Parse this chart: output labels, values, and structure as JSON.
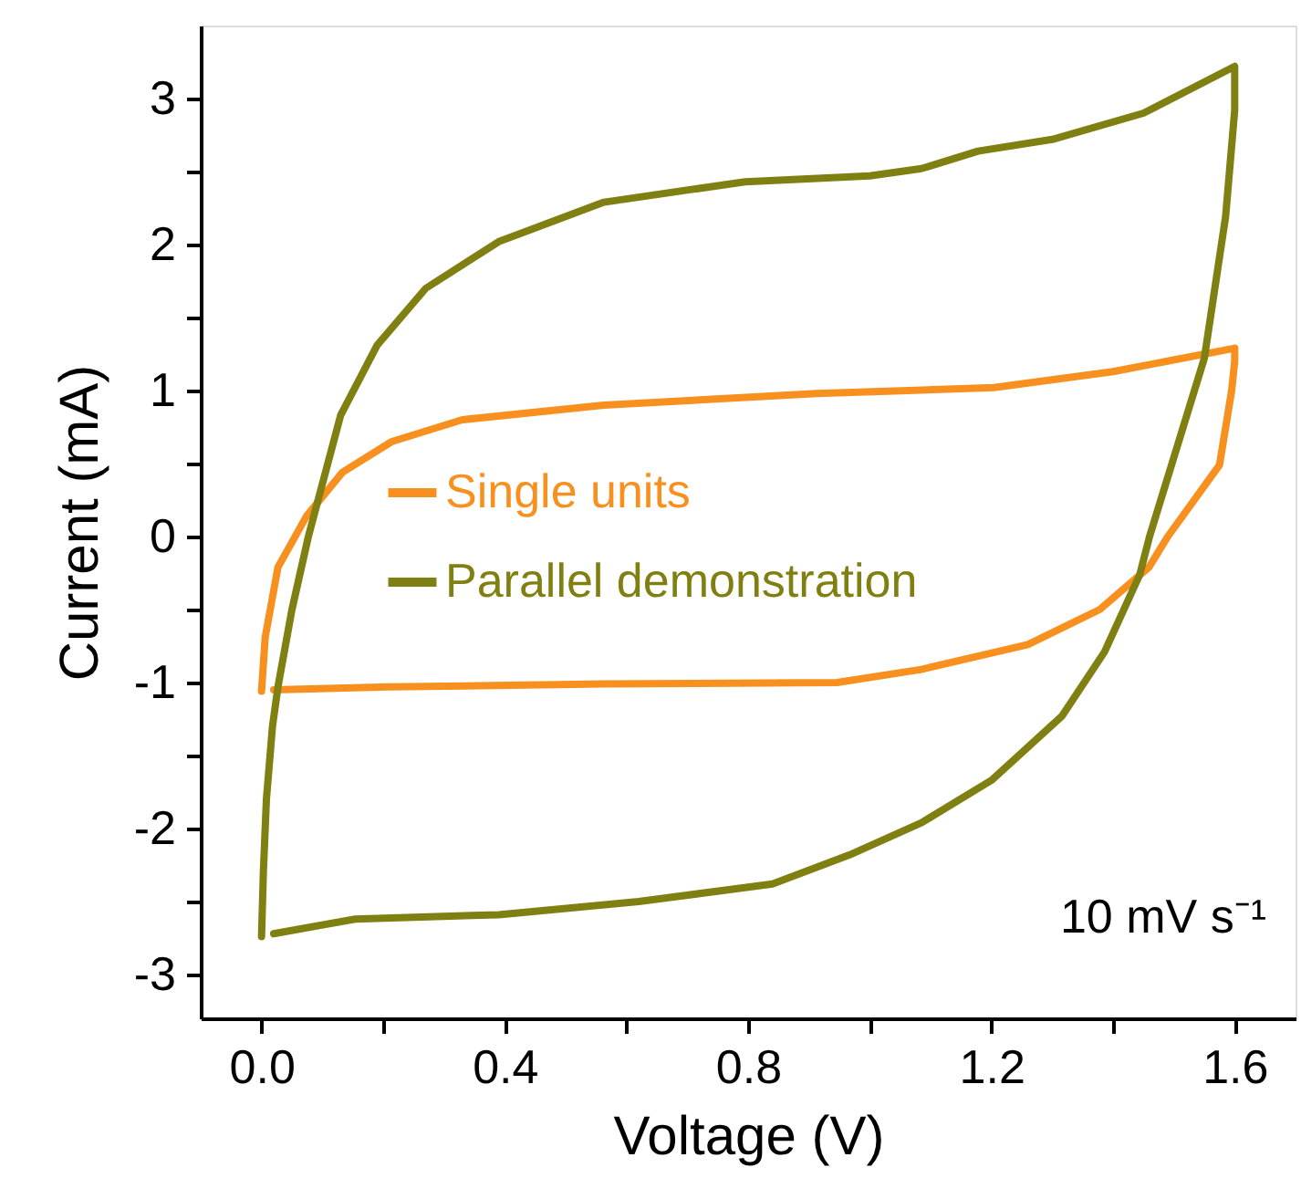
{
  "chart_data": {
    "type": "line",
    "xlabel": "Voltage (V)",
    "ylabel": "Current (mA)",
    "xlim": [
      -0.1,
      1.7
    ],
    "ylim": [
      -3.3,
      3.5
    ],
    "xticks": [
      {
        "value": 0,
        "label": "0.0"
      },
      0.4,
      0.8,
      1.2,
      1.6,
      {
        "value": 0.2,
        "label": null
      },
      {
        "value": 0.6,
        "label": null
      },
      {
        "value": 1.0,
        "label": null
      },
      {
        "value": 1.4,
        "label": null
      }
    ],
    "yticks": [
      -3,
      -2,
      -1,
      0,
      1,
      2,
      3,
      {
        "value": -2.5,
        "label": null
      },
      {
        "value": -1.5,
        "label": null
      },
      {
        "value": -0.5,
        "label": null
      },
      {
        "value": 0.5,
        "label": null
      },
      {
        "value": 1.5,
        "label": null
      },
      {
        "value": 2.5,
        "label": null
      }
    ],
    "grid": false,
    "legend": "left",
    "marker": "none",
    "line_style": "solid",
    "annotations": [
      "10 mV s⁻¹"
    ],
    "series": [
      {
        "name": "Single units",
        "color": "#f7901e",
        "x": [
          0.0,
          0.006,
          0.027,
          0.074,
          0.133,
          0.214,
          0.33,
          0.563,
          0.913,
          1.204,
          1.4,
          1.6,
          1.6,
          1.595,
          1.575,
          1.49,
          1.459,
          1.378,
          1.26,
          1.085,
          0.946,
          0.563,
          0.21,
          0.02
        ],
        "values": [
          -1.06,
          -0.69,
          -0.21,
          0.14,
          0.44,
          0.65,
          0.8,
          0.9,
          0.98,
          1.02,
          1.13,
          1.29,
          1.2,
          1.0,
          0.49,
          0.0,
          -0.21,
          -0.5,
          -0.74,
          -0.91,
          -1.0,
          -1.01,
          -1.03,
          -1.05
        ]
      },
      {
        "name": "Parallel demonstration",
        "color": "#7f7f12",
        "x": [
          0.0,
          0.003,
          0.008,
          0.018,
          0.027,
          0.05,
          0.077,
          0.13,
          0.19,
          0.27,
          0.39,
          0.563,
          0.795,
          1.0,
          1.085,
          1.178,
          1.3,
          1.45,
          1.6,
          1.6,
          1.585,
          1.55,
          1.46,
          1.444,
          1.386,
          1.316,
          1.2,
          1.085,
          0.967,
          0.84,
          0.62,
          0.39,
          0.154,
          0.02
        ],
        "values": [
          -2.74,
          -2.3,
          -1.8,
          -1.3,
          -1.03,
          -0.5,
          0.0,
          0.83,
          1.31,
          1.7,
          2.02,
          2.29,
          2.43,
          2.47,
          2.52,
          2.64,
          2.72,
          2.9,
          3.22,
          2.92,
          2.19,
          1.22,
          0.0,
          -0.26,
          -0.79,
          -1.23,
          -1.67,
          -1.96,
          -2.18,
          -2.38,
          -2.5,
          -2.59,
          -2.62,
          -2.72
        ]
      }
    ]
  }
}
